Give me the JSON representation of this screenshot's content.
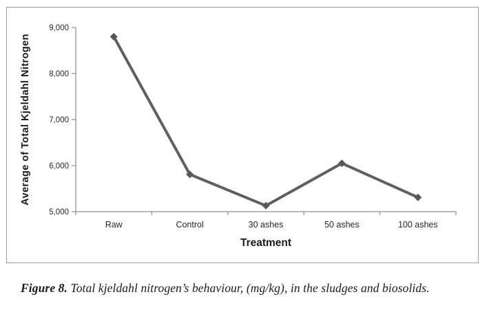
{
  "figure": {
    "caption": {
      "label": "Figure 8.",
      "text": " Total kjeldahl nitrogen’s behaviour, (mg/kg), in the sludges and biosolids."
    }
  },
  "chart_data": {
    "type": "line",
    "title": "",
    "xlabel": "Treatment",
    "ylabel": "Average of Total Kjeldahl Nitrogen",
    "categories": [
      "Raw",
      "Control",
      "30 ashes",
      "50 ashes",
      "100 ashes"
    ],
    "series": [
      {
        "name": "Average of Total Kjeldahl Nitrogen",
        "values": [
          8800,
          5810,
          5130,
          6050,
          5310
        ]
      }
    ],
    "ylim": [
      5000,
      9000
    ],
    "yticks": [
      5000,
      6000,
      7000,
      8000,
      9000
    ],
    "ytick_labels": [
      "5,000",
      "6,000",
      "7,000",
      "8,000",
      "9,000"
    ],
    "grid": false,
    "legend": "none",
    "marker": "diamond",
    "colors": {
      "line": "#5f5f5f",
      "marker": "#565656",
      "axis": "#909090",
      "tick_text": "#262626",
      "label_text": "#1a1a1a",
      "frame_border": "#9c9c9c"
    }
  }
}
